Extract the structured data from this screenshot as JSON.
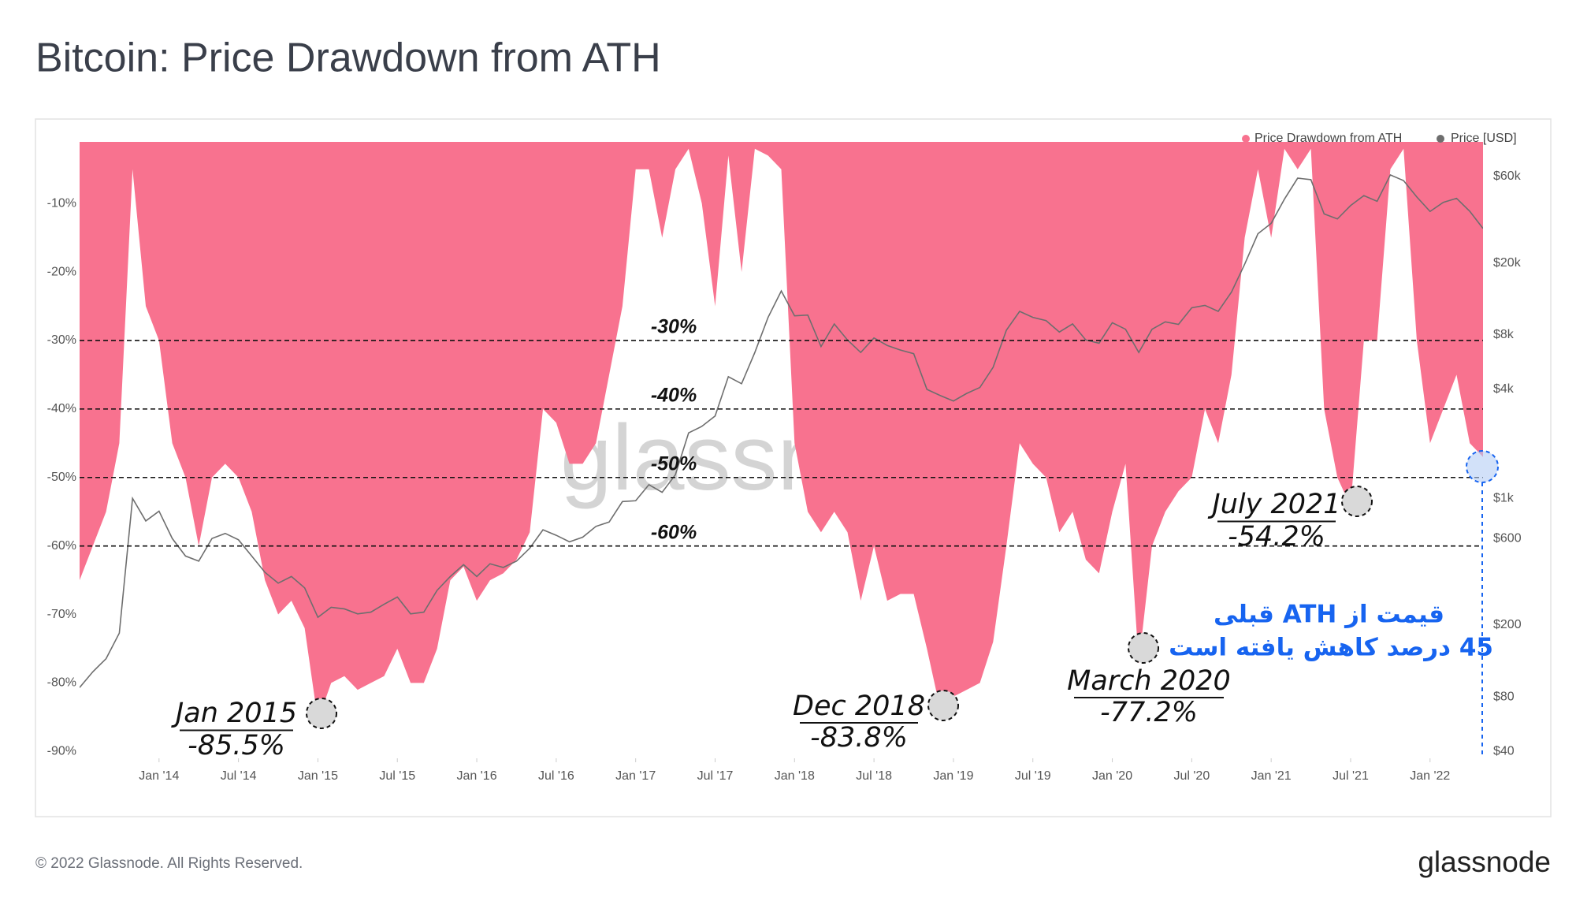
{
  "chart_data": {
    "type": "area",
    "title": "Bitcoin: Price Drawdown from ATH",
    "watermark": "glassnode",
    "x": [
      "2013-07",
      "2013-08",
      "2013-09",
      "2013-10",
      "2013-11",
      "2013-12",
      "2014-01",
      "2014-02",
      "2014-03",
      "2014-04",
      "2014-05",
      "2014-06",
      "2014-07",
      "2014-08",
      "2014-09",
      "2014-10",
      "2014-11",
      "2014-12",
      "2015-01",
      "2015-02",
      "2015-03",
      "2015-04",
      "2015-05",
      "2015-06",
      "2015-07",
      "2015-08",
      "2015-09",
      "2015-10",
      "2015-11",
      "2015-12",
      "2016-01",
      "2016-02",
      "2016-03",
      "2016-04",
      "2016-05",
      "2016-06",
      "2016-07",
      "2016-08",
      "2016-09",
      "2016-10",
      "2016-11",
      "2016-12",
      "2017-01",
      "2017-02",
      "2017-03",
      "2017-04",
      "2017-05",
      "2017-06",
      "2017-07",
      "2017-08",
      "2017-09",
      "2017-10",
      "2017-11",
      "2017-12",
      "2018-01",
      "2018-02",
      "2018-03",
      "2018-04",
      "2018-05",
      "2018-06",
      "2018-07",
      "2018-08",
      "2018-09",
      "2018-10",
      "2018-11",
      "2018-12",
      "2019-01",
      "2019-02",
      "2019-03",
      "2019-04",
      "2019-05",
      "2019-06",
      "2019-07",
      "2019-08",
      "2019-09",
      "2019-10",
      "2019-11",
      "2019-12",
      "2020-01",
      "2020-02",
      "2020-03",
      "2020-04",
      "2020-05",
      "2020-06",
      "2020-07",
      "2020-08",
      "2020-09",
      "2020-10",
      "2020-11",
      "2020-12",
      "2021-01",
      "2021-02",
      "2021-03",
      "2021-04",
      "2021-05",
      "2021-06",
      "2021-07",
      "2021-08",
      "2021-09",
      "2021-10",
      "2021-11",
      "2021-12",
      "2022-01",
      "2022-02",
      "2022-03",
      "2022-04",
      "2022-05"
    ],
    "series": [
      {
        "name": "Price Drawdown from ATH",
        "color": "#f8728f",
        "values": [
          -65,
          -60,
          -55,
          -45,
          -5,
          -25,
          -30,
          -45,
          -50,
          -60,
          -50,
          -48,
          -50,
          -55,
          -65,
          -70,
          -68,
          -72,
          -85.5,
          -80,
          -79,
          -81,
          -80,
          -79,
          -75,
          -80,
          -80,
          -75,
          -65,
          -63,
          -68,
          -65,
          -64,
          -62,
          -58,
          -40,
          -42,
          -48,
          -48,
          -45,
          -35,
          -25,
          -5,
          -5,
          -15,
          -5,
          -2,
          -10,
          -25,
          -3,
          -20,
          -2,
          -3,
          -5,
          -45,
          -55,
          -58,
          -55,
          -58,
          -68,
          -60,
          -68,
          -67,
          -67,
          -75,
          -83.8,
          -82,
          -81,
          -80,
          -74,
          -60,
          -45,
          -48,
          -50,
          -58,
          -55,
          -62,
          -64,
          -55,
          -48,
          -77.2,
          -60,
          -55,
          -52,
          -50,
          -40,
          -45,
          -35,
          -15,
          -5,
          -15,
          -2,
          -5,
          -2,
          -40,
          -50,
          -54.2,
          -30,
          -30,
          -5,
          -2,
          -30,
          -45,
          -40,
          -35,
          -45,
          -47
        ]
      },
      {
        "name": "Price [USD]",
        "color": "#6e6e6e",
        "axis": "y2",
        "values": [
          90,
          110,
          130,
          180,
          1000,
          750,
          850,
          600,
          480,
          450,
          600,
          640,
          590,
          480,
          390,
          340,
          370,
          320,
          220,
          250,
          245,
          230,
          235,
          260,
          285,
          230,
          235,
          310,
          370,
          430,
          370,
          435,
          415,
          450,
          530,
          670,
          625,
          575,
          610,
          700,
          740,
          960,
          970,
          1190,
          1080,
          1350,
          2300,
          2500,
          2850,
          4700,
          4300,
          6400,
          10000,
          14000,
          10200,
          10300,
          6900,
          9200,
          7500,
          6400,
          7700,
          7000,
          6600,
          6300,
          4000,
          3700,
          3450,
          3800,
          4100,
          5300,
          8500,
          10800,
          10000,
          9600,
          8300,
          9200,
          7500,
          7200,
          9350,
          8600,
          6400,
          8600,
          9450,
          9150,
          11300,
          11650,
          10800,
          13800,
          19700,
          29000,
          33100,
          45000,
          58800,
          57700,
          37300,
          35000,
          41500,
          47100,
          43800,
          61300,
          57000,
          46300,
          38500,
          43200,
          45500,
          38600,
          31000
        ]
      }
    ],
    "xlim": [
      "2013-07",
      "2022-05"
    ],
    "xticks": [
      {
        "value": "2014-01",
        "label": "Jan '14"
      },
      {
        "value": "2014-07",
        "label": "Jul '14"
      },
      {
        "value": "2015-01",
        "label": "Jan '15"
      },
      {
        "value": "2015-07",
        "label": "Jul '15"
      },
      {
        "value": "2016-01",
        "label": "Jan '16"
      },
      {
        "value": "2016-07",
        "label": "Jul '16"
      },
      {
        "value": "2017-01",
        "label": "Jan '17"
      },
      {
        "value": "2017-07",
        "label": "Jul '17"
      },
      {
        "value": "2018-01",
        "label": "Jan '18"
      },
      {
        "value": "2018-07",
        "label": "Jul '18"
      },
      {
        "value": "2019-01",
        "label": "Jan '19"
      },
      {
        "value": "2019-07",
        "label": "Jul '19"
      },
      {
        "value": "2020-01",
        "label": "Jan '20"
      },
      {
        "value": "2020-07",
        "label": "Jul '20"
      },
      {
        "value": "2021-01",
        "label": "Jan '21"
      },
      {
        "value": "2021-07",
        "label": "Jul '21"
      },
      {
        "value": "2022-01",
        "label": "Jan '22"
      }
    ],
    "ylim": [
      -91,
      -1
    ],
    "yticks": [
      {
        "value": -10,
        "label": "-10%"
      },
      {
        "value": -20,
        "label": "-20%"
      },
      {
        "value": -30,
        "label": "-30%"
      },
      {
        "value": -40,
        "label": "-40%"
      },
      {
        "value": -50,
        "label": "-50%"
      },
      {
        "value": -60,
        "label": "-60%"
      },
      {
        "value": -70,
        "label": "-70%"
      },
      {
        "value": -80,
        "label": "-80%"
      },
      {
        "value": -90,
        "label": "-90%"
      }
    ],
    "y2lim": [
      36.6,
      93300
    ],
    "y2log": true,
    "y2ticks": [
      {
        "value": 40,
        "label": "$40"
      },
      {
        "value": 80,
        "label": "$80"
      },
      {
        "value": 200,
        "label": "$200"
      },
      {
        "value": 600,
        "label": "$600"
      },
      {
        "value": 1000,
        "label": "$1k"
      },
      {
        "value": 4000,
        "label": "$4k"
      },
      {
        "value": 8000,
        "label": "$8k"
      },
      {
        "value": 20000,
        "label": "$20k"
      },
      {
        "value": 60000,
        "label": "$60k"
      }
    ],
    "grid": false,
    "legend": "top-right",
    "ref_lines": [
      {
        "value": -30,
        "label": "-30%"
      },
      {
        "value": -40,
        "label": "-40%"
      },
      {
        "value": -50,
        "label": "-50%"
      },
      {
        "value": -60,
        "label": "-60%"
      }
    ],
    "annotations": [
      {
        "text": "Jan 2015",
        "label": "-85.5%"
      },
      {
        "text": "Dec 2018",
        "label": "-83.8%"
      },
      {
        "text": "March 2020",
        "label": "-77.2%"
      },
      {
        "text": "July 2021",
        "label": "-54.2%"
      }
    ],
    "callout": [
      "قیمت از ATH قبلی",
      "45 درصد کاهش یافته است"
    ]
  },
  "footer": {
    "copyright": "© 2022 Glassnode. All Rights Reserved.",
    "logo": "glassnode"
  }
}
